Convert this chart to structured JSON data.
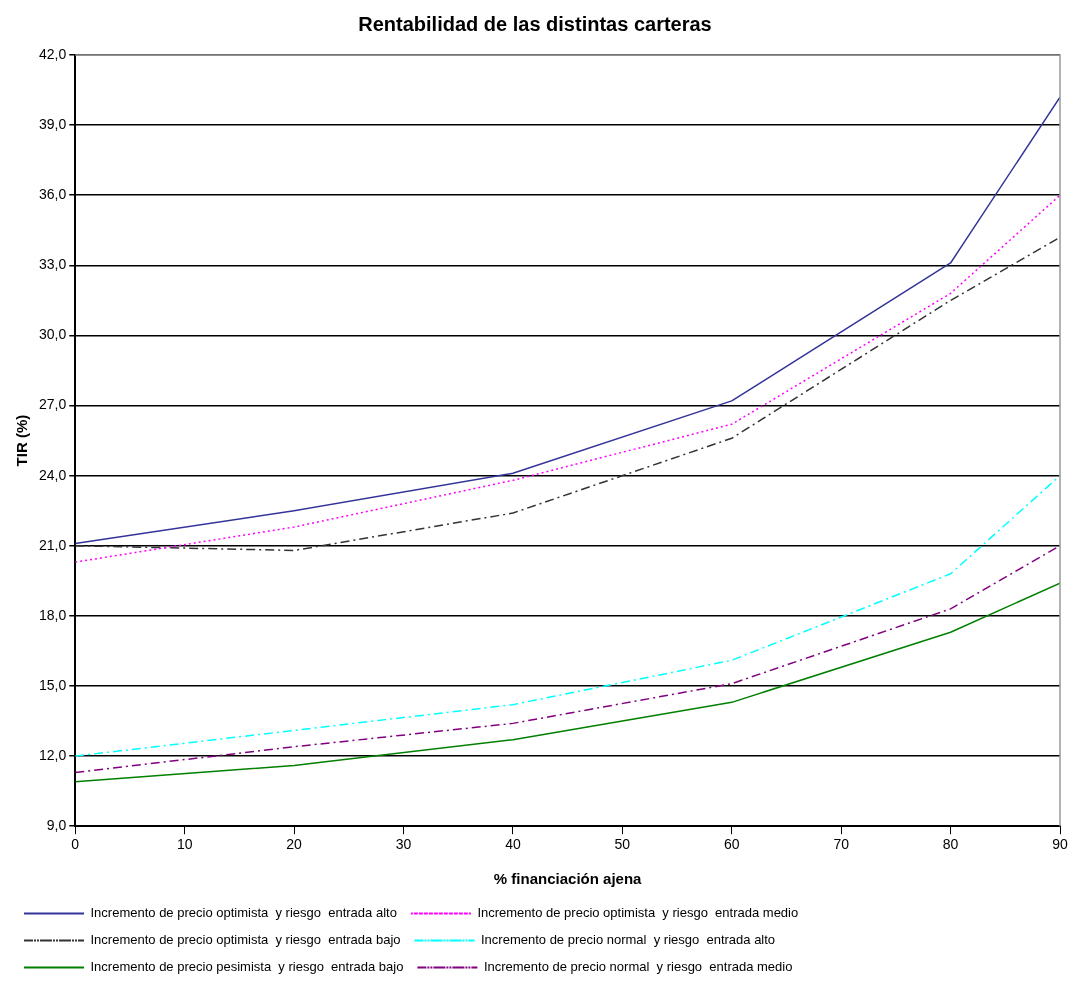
{
  "chart_data": {
    "type": "line",
    "title": "Rentabilidad de las distintas carteras",
    "xlabel": "% financiación ajena",
    "ylabel": "TIR (%)",
    "x": [
      0,
      20,
      40,
      60,
      80,
      90
    ],
    "series": [
      {
        "name": "Incremento de precio optimista  y riesgo  entrada alto",
        "color": "#333399",
        "line_style": "solid",
        "values": [
          21.1,
          22.5,
          24.1,
          27.2,
          33.1,
          40.2
        ]
      },
      {
        "name": "Incremento de precio optimista  y riesgo  entrada medio",
        "color": "#ff00ff",
        "line_style": "dotted",
        "values": [
          20.3,
          21.8,
          23.8,
          26.2,
          31.8,
          36.0
        ]
      },
      {
        "name": "Incremento de precio optimista  y riesgo  entrada bajo",
        "color": "#333333",
        "line_style": "dashed",
        "values": [
          21.0,
          20.8,
          22.4,
          25.6,
          31.5,
          34.2
        ]
      },
      {
        "name": "Incremento de precio normal  y riesgo  entrada alto",
        "color": "#00ffff",
        "line_style": "dashed",
        "values": [
          12.0,
          13.1,
          14.2,
          16.1,
          19.8,
          24.0
        ]
      },
      {
        "name": "Incremento de precio pesimista  y riesgo  entrada bajo",
        "color": "#008000",
        "line_style": "solid",
        "values": [
          10.9,
          11.6,
          12.7,
          14.3,
          17.3,
          19.4
        ]
      },
      {
        "name": "Incremento de precio normal  y riesgo  entrada medio",
        "color": "#800080",
        "line_style": "dashed",
        "values": [
          11.3,
          12.4,
          13.4,
          15.1,
          18.3,
          21.0
        ]
      }
    ],
    "xlim": [
      0,
      90
    ],
    "xticks": [
      0,
      10,
      20,
      30,
      40,
      50,
      60,
      70,
      80,
      90
    ],
    "ylim": [
      9,
      42
    ],
    "yticks": [
      {
        "value": 9,
        "label": "9,0"
      },
      {
        "value": 12,
        "label": "12,0"
      },
      {
        "value": 15,
        "label": "15,0"
      },
      {
        "value": 18,
        "label": "18,0"
      },
      {
        "value": 21,
        "label": "21,0"
      },
      {
        "value": 24,
        "label": "24,0"
      },
      {
        "value": 27,
        "label": "27,0"
      },
      {
        "value": 30,
        "label": "30,0"
      },
      {
        "value": 33,
        "label": "33,0"
      },
      {
        "value": 36,
        "label": "36,0"
      },
      {
        "value": 39,
        "label": "39,0"
      },
      {
        "value": 42,
        "label": "42,0"
      }
    ],
    "grid": "y",
    "legend": "bottom",
    "marker": "none"
  }
}
